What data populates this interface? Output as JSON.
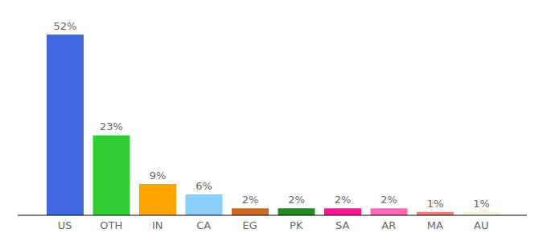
{
  "chart_data": {
    "type": "bar",
    "categories": [
      "US",
      "OTH",
      "IN",
      "CA",
      "EG",
      "PK",
      "SA",
      "AR",
      "MA",
      "AU"
    ],
    "values": [
      52,
      23,
      9,
      6,
      2,
      2,
      2,
      2,
      1,
      1
    ],
    "value_labels": [
      "52%",
      "23%",
      "9%",
      "6%",
      "2%",
      "2%",
      "2%",
      "2%",
      "1%",
      "1%"
    ],
    "colors": [
      "#4169e1",
      "#32cd32",
      "#ffa500",
      "#87cefa",
      "#d2691e",
      "#228b22",
      "#ff1493",
      "#ff69b4",
      "#f08080",
      "#f5f5dc"
    ],
    "data_labels": true,
    "tick_labels": "x"
  }
}
